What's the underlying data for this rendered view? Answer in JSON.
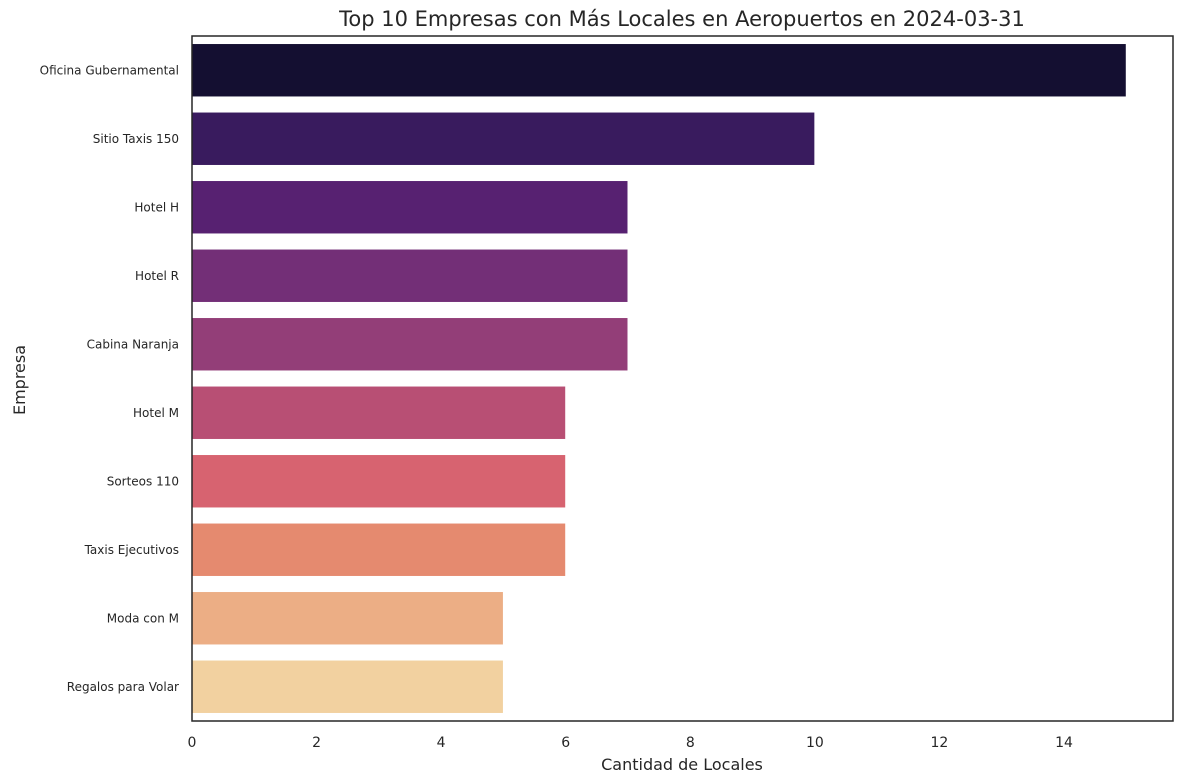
{
  "chart_data": {
    "type": "bar",
    "orientation": "horizontal",
    "title": "Top 10 Empresas con Más Locales en Aeropuertos en 2024-03-31",
    "xlabel": "Cantidad de Locales",
    "ylabel": "Empresa",
    "categories": [
      "Oficina Gubernamental",
      "Sitio Taxis 150",
      "Hotel H",
      "Hotel R",
      "Cabina Naranja",
      "Hotel M",
      "Sorteos 110",
      "Taxis Ejecutivos",
      "Moda con M",
      "Regalos para Volar"
    ],
    "values": [
      15,
      10,
      7,
      7,
      7,
      6,
      6,
      6,
      5,
      5
    ],
    "colors": [
      "#140f31",
      "#391b5e",
      "#572171",
      "#732f77",
      "#933e78",
      "#b84f74",
      "#d76370",
      "#e58a6f",
      "#ecae85",
      "#f2d1a0"
    ],
    "xlim": [
      0,
      15.75
    ],
    "xticks": [
      0,
      2,
      4,
      6,
      8,
      10,
      12,
      14
    ],
    "grid": false,
    "legend": "none"
  }
}
